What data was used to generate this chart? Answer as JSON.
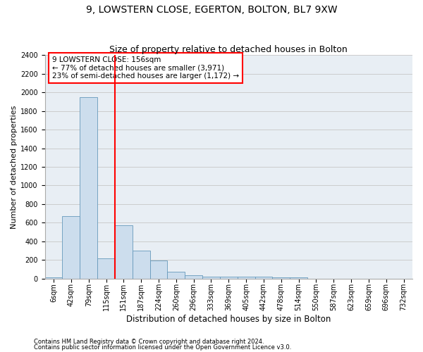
{
  "title": "9, LOWSTERN CLOSE, EGERTON, BOLTON, BL7 9XW",
  "subtitle": "Size of property relative to detached houses in Bolton",
  "xlabel": "Distribution of detached houses by size in Bolton",
  "ylabel": "Number of detached properties",
  "footnote1": "Contains HM Land Registry data © Crown copyright and database right 2024.",
  "footnote2": "Contains public sector information licensed under the Open Government Licence v3.0.",
  "bin_labels": [
    "6sqm",
    "42sqm",
    "79sqm",
    "115sqm",
    "151sqm",
    "187sqm",
    "224sqm",
    "260sqm",
    "296sqm",
    "333sqm",
    "369sqm",
    "405sqm",
    "442sqm",
    "478sqm",
    "514sqm",
    "550sqm",
    "587sqm",
    "623sqm",
    "659sqm",
    "696sqm",
    "732sqm"
  ],
  "bar_values": [
    10,
    670,
    1950,
    215,
    575,
    300,
    198,
    75,
    40,
    25,
    25,
    20,
    20,
    15,
    10,
    0,
    0,
    0,
    0,
    0,
    0
  ],
  "bar_color": "#ccdded",
  "bar_edge_color": "#6699bb",
  "red_line_x": 3.5,
  "property_line_color": "red",
  "annotation_text": "9 LOWSTERN CLOSE: 156sqm\n← 77% of detached houses are smaller (3,971)\n23% of semi-detached houses are larger (1,172) →",
  "annotation_box_color": "white",
  "annotation_box_edge_color": "red",
  "ylim": [
    0,
    2400
  ],
  "yticks": [
    0,
    200,
    400,
    600,
    800,
    1000,
    1200,
    1400,
    1600,
    1800,
    2000,
    2200,
    2400
  ],
  "grid_color": "#cccccc",
  "background_color": "#e8eef4",
  "title_fontsize": 10,
  "subtitle_fontsize": 9,
  "annotation_fontsize": 7.5,
  "ylabel_fontsize": 8,
  "xlabel_fontsize": 8.5,
  "tick_fontsize": 7,
  "footnote_fontsize": 6
}
